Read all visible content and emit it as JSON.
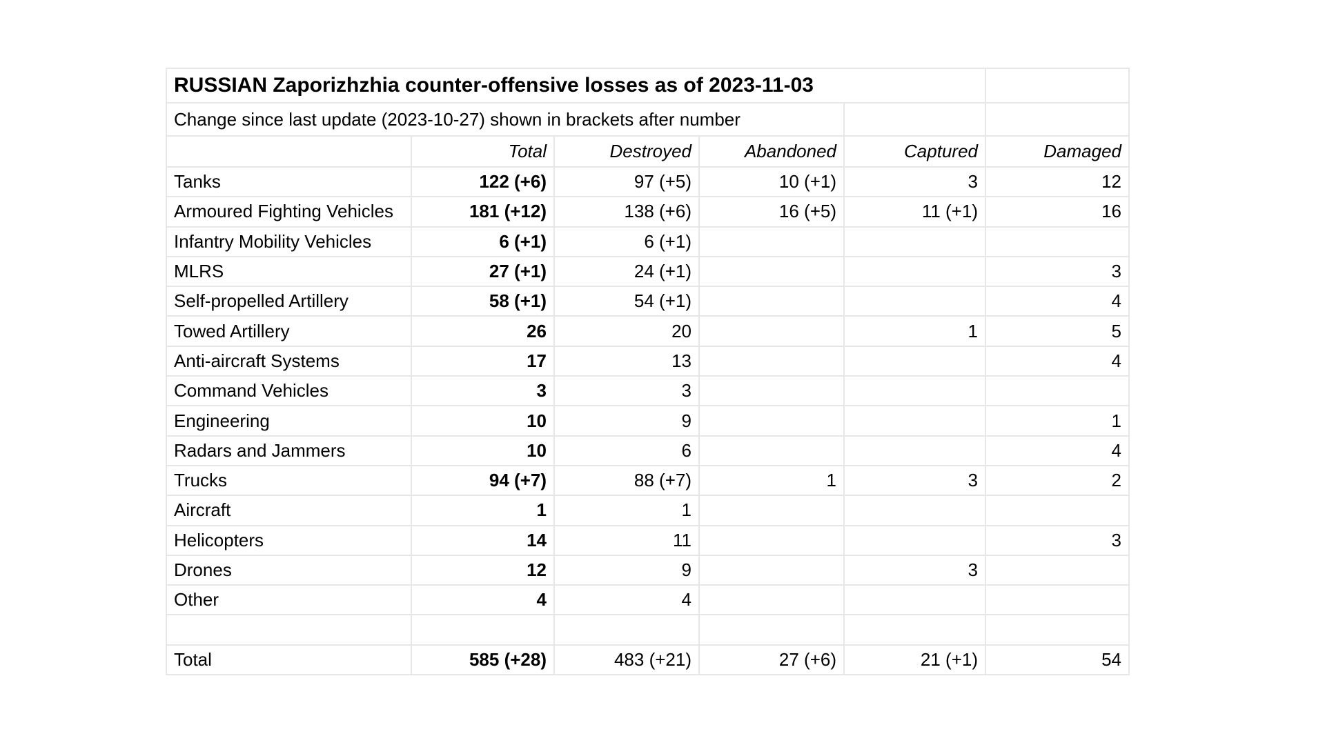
{
  "table": {
    "title": "RUSSIAN Zaporizhzhia counter-offensive losses as of 2023-11-03",
    "subtitle": "Change since last update (2023-10-27) shown in brackets after number",
    "columns": [
      "",
      "Total",
      "Destroyed",
      "Abandoned",
      "Captured",
      "Damaged"
    ],
    "rows": [
      [
        "Tanks",
        "122 (+6)",
        "97 (+5)",
        "10 (+1)",
        "3",
        "12"
      ],
      [
        "Armoured Fighting Vehicles",
        "181 (+12)",
        "138 (+6)",
        "16 (+5)",
        "11 (+1)",
        "16"
      ],
      [
        "Infantry Mobility Vehicles",
        "6 (+1)",
        "6 (+1)",
        "",
        "",
        ""
      ],
      [
        "MLRS",
        "27 (+1)",
        "24 (+1)",
        "",
        "",
        "3"
      ],
      [
        "Self-propelled Artillery",
        "58 (+1)",
        "54 (+1)",
        "",
        "",
        "4"
      ],
      [
        "Towed Artillery",
        "26",
        "20",
        "",
        "1",
        "5"
      ],
      [
        "Anti-aircraft Systems",
        "17",
        "13",
        "",
        "",
        "4"
      ],
      [
        "Command Vehicles",
        "3",
        "3",
        "",
        "",
        ""
      ],
      [
        "Engineering",
        "10",
        "9",
        "",
        "",
        "1"
      ],
      [
        "Radars and Jammers",
        "10",
        "6",
        "",
        "",
        "4"
      ],
      [
        "Trucks",
        "94 (+7)",
        "88 (+7)",
        "1",
        "3",
        "2"
      ],
      [
        "Aircraft",
        "1",
        "1",
        "",
        "",
        ""
      ],
      [
        "Helicopters",
        "14",
        "11",
        "",
        "",
        "3"
      ],
      [
        "Drones",
        "12",
        "9",
        "",
        "3",
        ""
      ],
      [
        "Other",
        "4",
        "4",
        "",
        "",
        ""
      ],
      [
        "",
        "",
        "",
        "",
        "",
        ""
      ],
      [
        "Total",
        "585 (+28)",
        "483 (+21)",
        "27 (+6)",
        "21 (+1)",
        "54"
      ]
    ],
    "colors": {
      "border": "#e7e7e7",
      "text": "#000000",
      "background": "#ffffff"
    }
  }
}
